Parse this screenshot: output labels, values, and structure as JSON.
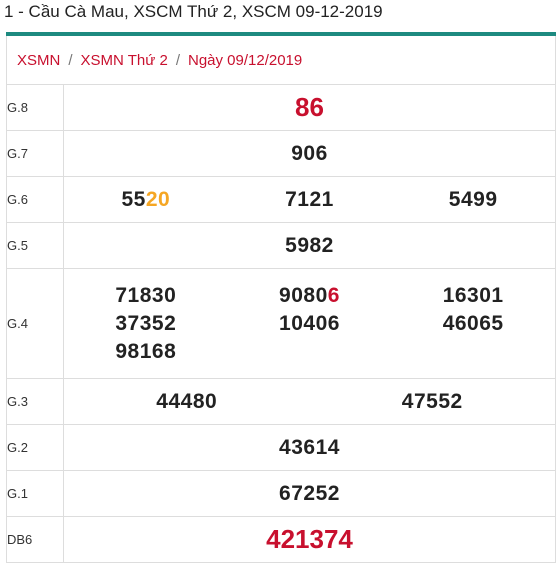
{
  "page_title": "1 - Cầu Cà Mau, XSCM Thứ 2, XSCM 09-12-2019",
  "breadcrumb": {
    "items": [
      "XSMN",
      "XSMN Thứ 2",
      "Ngày 09/12/2019"
    ],
    "separator": "/"
  },
  "colors": {
    "accent_bar": "#1d8a80",
    "link_red": "#c8102e",
    "highlight_orange": "#f5a623"
  },
  "prizes": {
    "g8": {
      "label": "G.8",
      "values": [
        "86"
      ]
    },
    "g7": {
      "label": "G.7",
      "values": [
        "906"
      ]
    },
    "g6": {
      "label": "G.6",
      "values": [
        {
          "prefix": "55",
          "highlight": "20"
        },
        "7121",
        "5499"
      ]
    },
    "g5": {
      "label": "G.5",
      "values": [
        "5982"
      ]
    },
    "g4": {
      "label": "G.4",
      "values": [
        "71830",
        {
          "prefix": "9080",
          "highlight": "6"
        },
        "16301",
        "37352",
        "10406",
        "46065",
        "98168"
      ]
    },
    "g3": {
      "label": "G.3",
      "values": [
        "44480",
        "47552"
      ]
    },
    "g2": {
      "label": "G.2",
      "values": [
        "43614"
      ]
    },
    "g1": {
      "label": "G.1",
      "values": [
        "67252"
      ]
    },
    "db": {
      "label": "DB6",
      "values": [
        "421374"
      ]
    }
  }
}
